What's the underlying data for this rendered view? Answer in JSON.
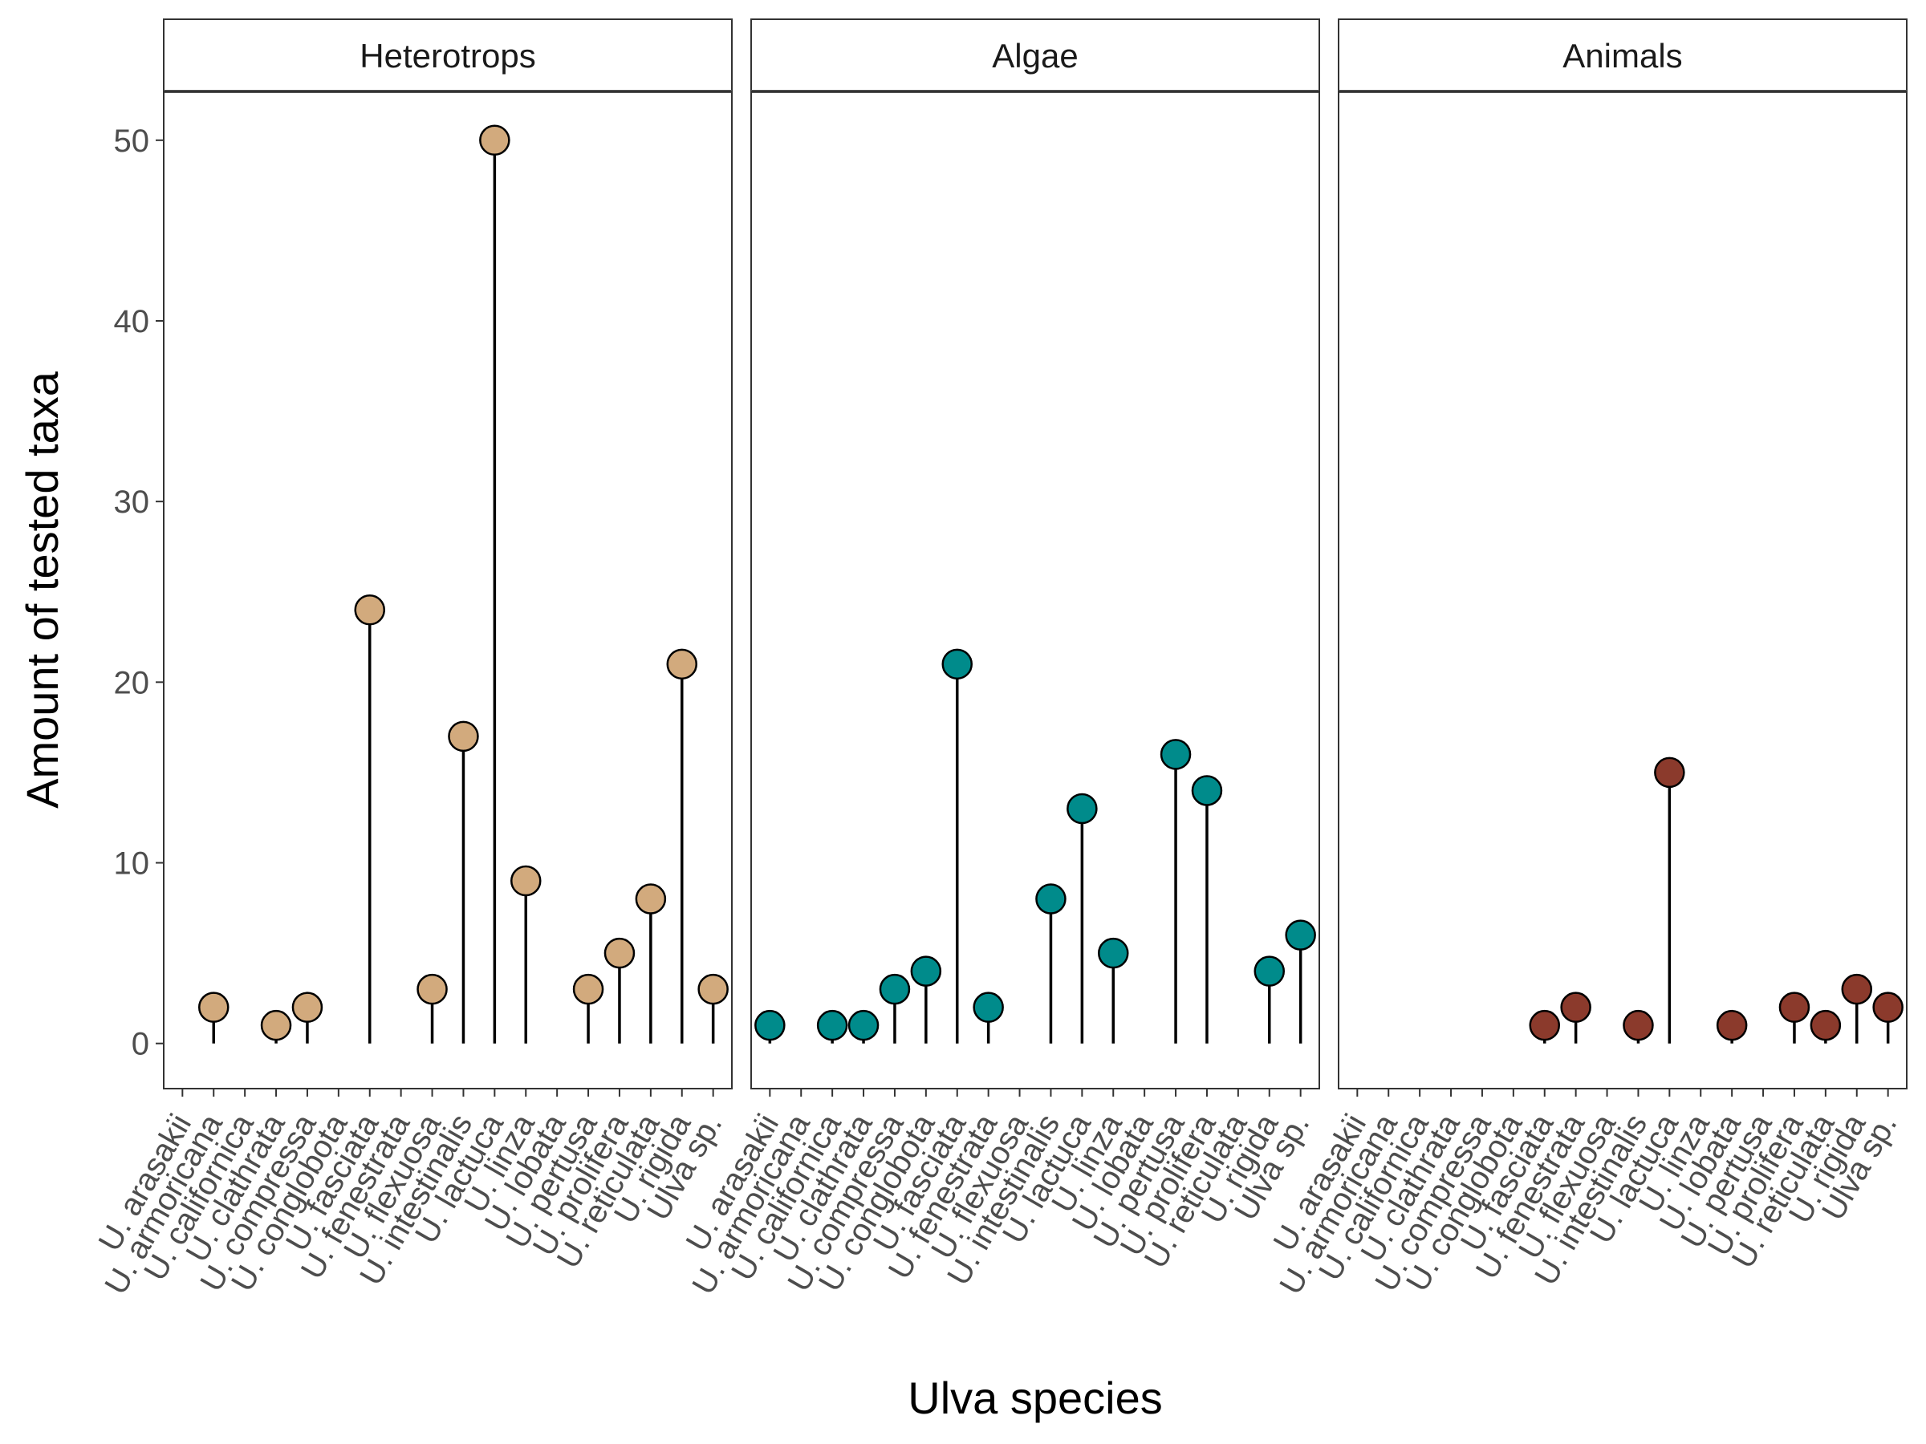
{
  "chart_data": {
    "type": "lollipop",
    "xlabel": "Ulva species",
    "ylabel": "Amount of tested taxa",
    "ylim": [
      -2.5,
      52.7
    ],
    "yticks": [
      0,
      10,
      20,
      30,
      40,
      50
    ],
    "grid": false,
    "categories": [
      "U. arasakii",
      "U. armoricana",
      "U. californica",
      "U. clathrata",
      "U. compressa",
      "U. conglobota",
      "U. fasciata",
      "U. fenestrata",
      "U. flexuosa",
      "U. intestinalis",
      "U. lactuca",
      "U. linza",
      "U. lobata",
      "U. pertusa",
      "U. prolifera",
      "U. reticulata",
      "U. rigida",
      "Ulva sp."
    ],
    "panels": [
      {
        "name": "Heterotrops",
        "color": "#D2AA7D",
        "values": [
          null,
          2,
          null,
          1,
          2,
          null,
          24,
          null,
          3,
          17,
          50,
          9,
          null,
          3,
          5,
          8,
          21,
          3
        ]
      },
      {
        "name": "Algae",
        "color": "#008B8B",
        "values": [
          1,
          null,
          1,
          1,
          3,
          4,
          21,
          2,
          null,
          8,
          13,
          5,
          null,
          16,
          14,
          null,
          4,
          6
        ]
      },
      {
        "name": "Animals",
        "color": "#8B3A2C",
        "values": [
          null,
          null,
          null,
          null,
          null,
          null,
          1,
          2,
          null,
          1,
          15,
          null,
          1,
          null,
          2,
          1,
          3,
          2
        ]
      }
    ]
  }
}
